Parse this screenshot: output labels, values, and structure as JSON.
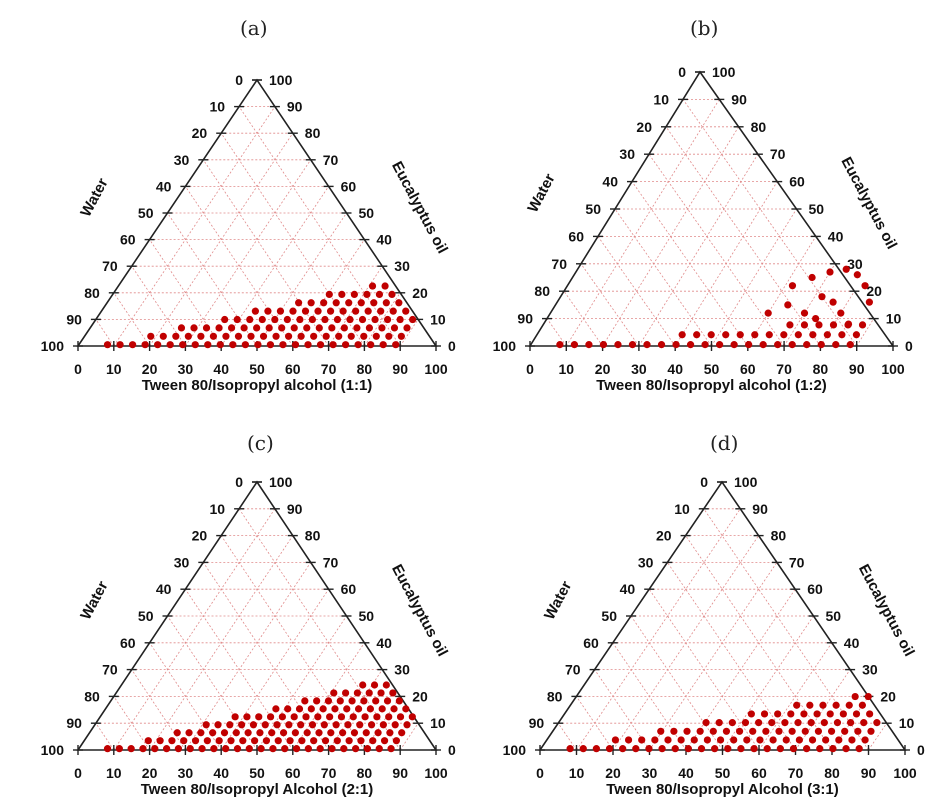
{
  "chart_data": [
    {
      "type": "scatter",
      "subplot_label": "(a)",
      "axis_labels": {
        "bottom": "Tween 80/Isopropyl alcohol (1:1)",
        "left": "Water",
        "right": "Eucalyptus oil"
      },
      "ticks": [
        "0",
        "10",
        "20",
        "30",
        "40",
        "50",
        "60",
        "70",
        "80",
        "90",
        "100"
      ],
      "grid": true,
      "point_color": "#c00000",
      "region": {
        "surfactant_range": [
          8,
          90
        ],
        "oil_max_at_surfactant": 30,
        "spacing": 3.5
      },
      "extra_points": []
    },
    {
      "type": "scatter",
      "subplot_label": "(b)",
      "axis_labels": {
        "bottom": "Tween 80/Isopropyl alcohol (1:2)",
        "left": "Water",
        "right": "Eucalyptus oil"
      },
      "ticks": [
        "0",
        "10",
        "20",
        "30",
        "40",
        "50",
        "60",
        "70",
        "80",
        "90",
        "100"
      ],
      "grid": true,
      "point_color": "#c00000",
      "region": {
        "surfactant_range": [
          8,
          90
        ],
        "oil_max_at_surfactant": 10,
        "spacing": 4.0
      },
      "extra_points": [
        [
          62,
          22
        ],
        [
          66,
          25
        ],
        [
          70,
          27
        ],
        [
          74,
          28
        ],
        [
          78,
          26
        ],
        [
          82,
          22
        ],
        [
          86,
          16
        ],
        [
          72,
          18
        ],
        [
          76,
          16
        ],
        [
          80,
          12
        ],
        [
          84,
          8
        ],
        [
          70,
          12
        ],
        [
          74,
          10
        ],
        [
          64,
          15
        ],
        [
          60,
          12
        ]
      ]
    },
    {
      "type": "scatter",
      "subplot_label": "(c)",
      "axis_labels": {
        "bottom": "Tween 80/Isopropyl Alcohol (2:1)",
        "left": "Water",
        "right": "Eucalyptus oil"
      },
      "ticks": [
        "0",
        "10",
        "20",
        "30",
        "40",
        "50",
        "60",
        "70",
        "80",
        "90",
        "100"
      ],
      "grid": true,
      "point_color": "#c00000",
      "region": {
        "surfactant_range": [
          8,
          90
        ],
        "oil_max_at_surfactant": 33,
        "spacing": 3.3
      },
      "extra_points": []
    },
    {
      "type": "scatter",
      "subplot_label": "(d)",
      "axis_labels": {
        "bottom": "Tween 80/Isopropyl Alcohol (3:1)",
        "left": "Water",
        "right": "Eucalyptus oil"
      },
      "ticks": [
        "0",
        "10",
        "20",
        "30",
        "40",
        "50",
        "60",
        "70",
        "80",
        "90",
        "100"
      ],
      "grid": true,
      "point_color": "#c00000",
      "region": {
        "surfactant_range": [
          8,
          88
        ],
        "oil_max_at_surfactant": 24,
        "spacing": 3.6
      },
      "extra_points": []
    }
  ]
}
